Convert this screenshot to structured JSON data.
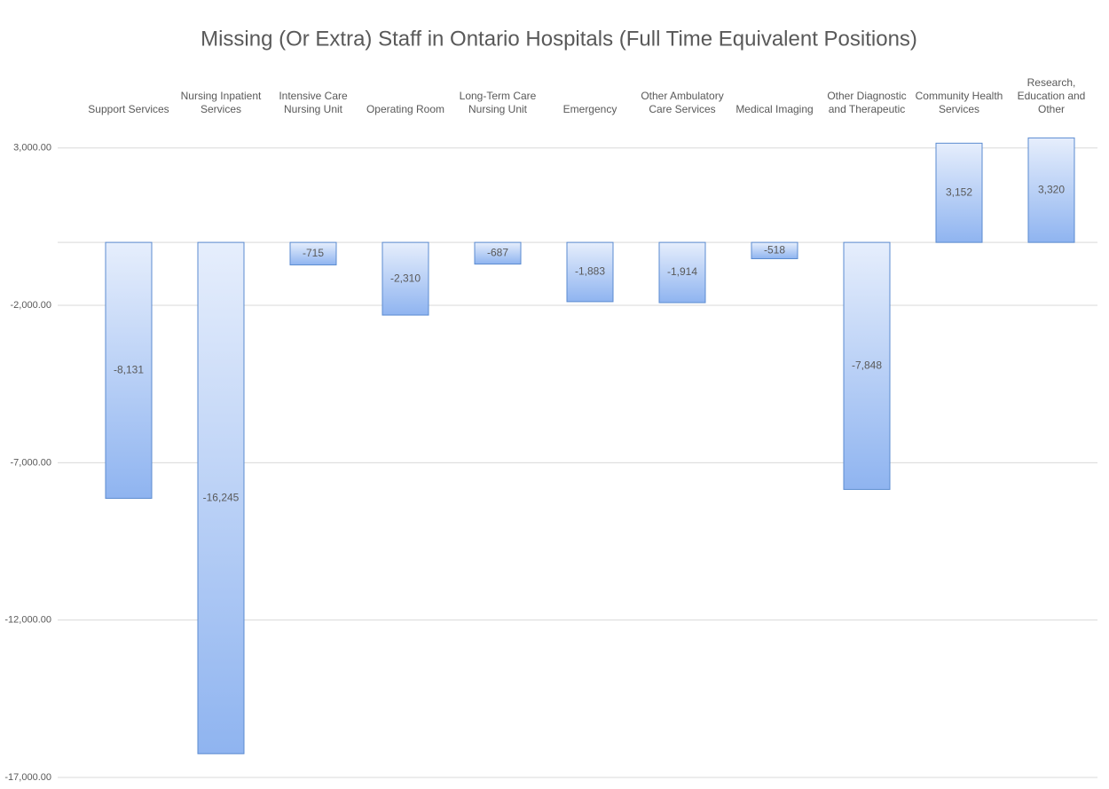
{
  "chart_data": {
    "type": "bar",
    "title": "Missing (Or Extra) Staff in Ontario Hospitals (Full Time Equivalent Positions)",
    "categories": [
      "Support Services",
      "Nursing Inpatient Services",
      "Intensive Care Nursing Unit",
      "Operating Room",
      "Long-Term Care Nursing Unit",
      "Emergency",
      "Other Ambulatory Care Services",
      "Medical Imaging",
      "Other Diagnostic and Therapeutic",
      "Community Health Services",
      "Research, Education and Other"
    ],
    "values": [
      -8131,
      -16245,
      -715,
      -2310,
      -687,
      -1883,
      -1914,
      -518,
      -7848,
      3152,
      3320
    ],
    "value_labels": [
      "-8,131",
      "-16,245",
      "-715",
      "-2,310",
      "-687",
      "-1,883",
      "-1,914",
      "-518",
      "-7,848",
      "3,152",
      "3,320"
    ],
    "color": "#8fb4f0",
    "ylim": [
      -17000,
      3500
    ],
    "yticks": [
      {
        "value": 3000,
        "label": "3,000.00"
      },
      {
        "value": -2000,
        "label": "-2,000.00"
      },
      {
        "value": -7000,
        "label": "-7,000.00"
      },
      {
        "value": -12000,
        "label": "-12,000.00"
      },
      {
        "value": -17000,
        "label": "-17,000.00"
      }
    ],
    "grid": true
  }
}
